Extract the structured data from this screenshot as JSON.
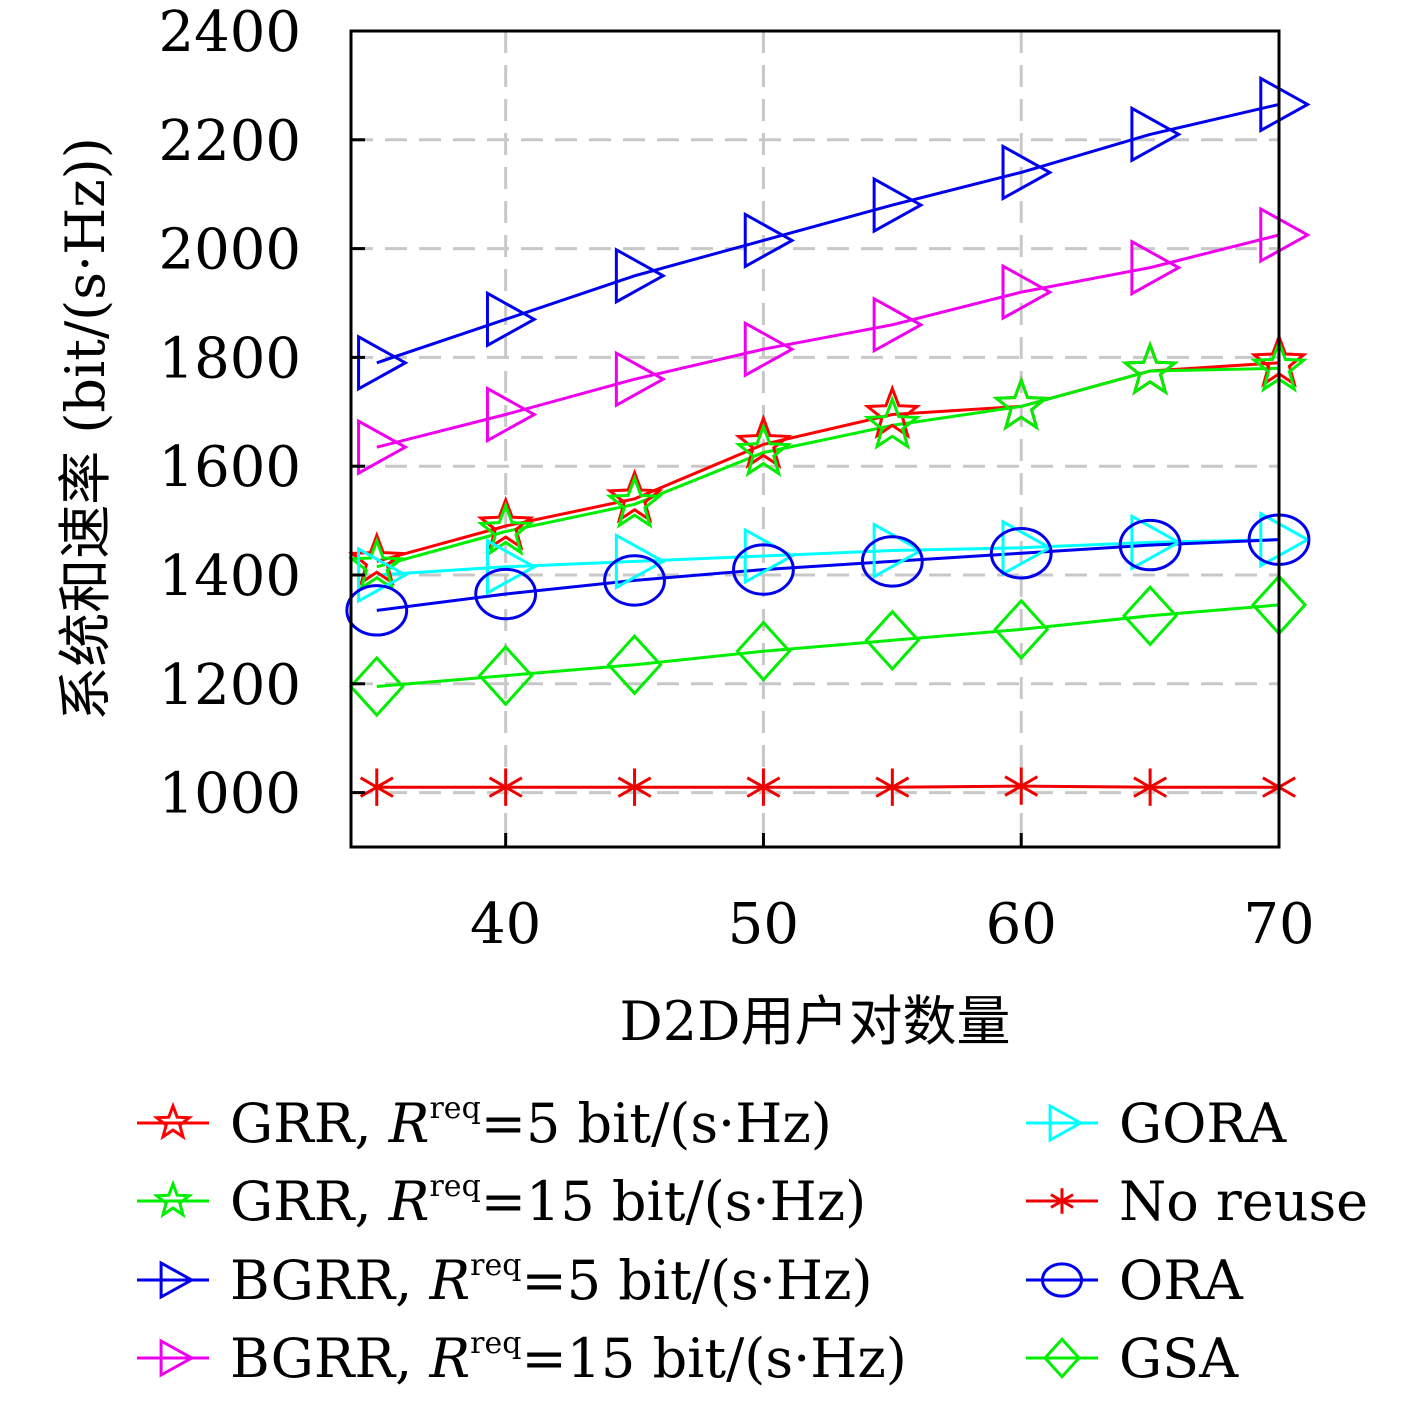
{
  "chart_data": {
    "type": "line",
    "xlabel": "D2D用户对数量",
    "ylabel": "系统和速率 (bit/(s·Hz))",
    "x": [
      35,
      40,
      45,
      50,
      55,
      60,
      65,
      70
    ],
    "xlim": [
      34,
      70
    ],
    "ylim": [
      900,
      2400
    ],
    "xticks": [
      40,
      50,
      60,
      70
    ],
    "yticks": [
      1000,
      1200,
      1400,
      1600,
      1800,
      2000,
      2200,
      2400
    ],
    "grid": true,
    "legend_position": "bottom",
    "series": [
      {
        "name": "GRR, R^req=5 bit/(s·Hz)",
        "prefix": "GRR, ",
        "var": "R",
        "sup": "req",
        "suffix": "=5 bit/(s·Hz)",
        "color": "#ff0000",
        "marker": "star",
        "values": [
          1425,
          1490,
          1540,
          1640,
          1695,
          1710,
          1775,
          1790
        ]
      },
      {
        "name": "GRR, R^req=15 bit/(s·Hz)",
        "prefix": "GRR, ",
        "var": "R",
        "sup": "req",
        "suffix": "=15 bit/(s·Hz)",
        "color": "#00ee00",
        "marker": "star",
        "values": [
          1415,
          1480,
          1530,
          1625,
          1675,
          1710,
          1775,
          1780
        ]
      },
      {
        "name": "BGRR, R^req=5 bit/(s·Hz)",
        "prefix": "BGRR, ",
        "var": "R",
        "sup": "req",
        "suffix": "=5 bit/(s·Hz)",
        "color": "#0000ee",
        "marker": "triangle-right",
        "values": [
          1790,
          1870,
          1950,
          2015,
          2080,
          2140,
          2210,
          2265
        ]
      },
      {
        "name": "BGRR, R^req=15 bit/(s·Hz)",
        "prefix": "BGRR, ",
        "var": "R",
        "sup": "req",
        "suffix": "=15 bit/(s·Hz)",
        "color": "#ee00ee",
        "marker": "triangle-right",
        "values": [
          1635,
          1695,
          1760,
          1815,
          1860,
          1920,
          1965,
          2025
        ]
      },
      {
        "name": "GORA",
        "prefix": "GORA",
        "color": "#00ffff",
        "marker": "triangle-right",
        "values": [
          1400,
          1415,
          1425,
          1435,
          1445,
          1450,
          1460,
          1465
        ]
      },
      {
        "name": "No reuse",
        "prefix": "No reuse",
        "color": "#ee0000",
        "marker": "asterisk",
        "values": [
          1010,
          1010,
          1010,
          1010,
          1010,
          1012,
          1010,
          1010
        ]
      },
      {
        "name": "ORA",
        "prefix": "ORA",
        "color": "#0000ee",
        "marker": "circle",
        "values": [
          1335,
          1365,
          1390,
          1410,
          1425,
          1440,
          1455,
          1465
        ]
      },
      {
        "name": "GSA",
        "prefix": "GSA",
        "color": "#00ee00",
        "marker": "diamond",
        "values": [
          1195,
          1215,
          1235,
          1260,
          1280,
          1300,
          1325,
          1345
        ]
      }
    ]
  }
}
